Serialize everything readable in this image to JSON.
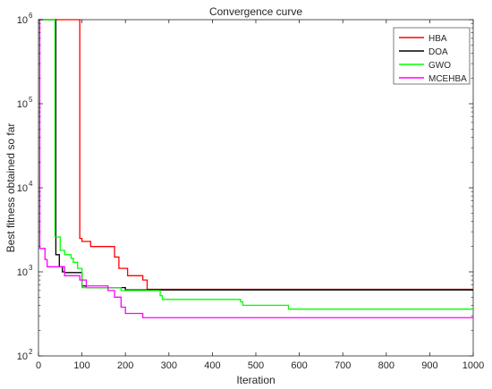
{
  "chart_data": {
    "type": "line",
    "title": "Convergence curve",
    "xlabel": "Iteration",
    "ylabel": "Best fitness obtained so far",
    "xlim": [
      0,
      1000
    ],
    "ylim": [
      100,
      1000000
    ],
    "yscale": "log",
    "xticks": [
      "0",
      "100",
      "200",
      "300",
      "400",
      "500",
      "600",
      "700",
      "800",
      "900",
      "1000"
    ],
    "yticks": [
      {
        "value": 100,
        "mantissa": "10",
        "exp": "2"
      },
      {
        "value": 1000,
        "mantissa": "10",
        "exp": "3"
      },
      {
        "value": 10000,
        "mantissa": "10",
        "exp": "4"
      },
      {
        "value": 100000,
        "mantissa": "10",
        "exp": "5"
      },
      {
        "value": 1000000,
        "mantissa": "10",
        "exp": "6"
      }
    ],
    "grid": false,
    "legend_position": "top-right",
    "series": [
      {
        "name": "HBA",
        "color": "#ff0000",
        "step": true,
        "points": [
          [
            0,
            1000000
          ],
          [
            95,
            1000000
          ],
          [
            95,
            2500
          ],
          [
            100,
            2300
          ],
          [
            120,
            2000
          ],
          [
            175,
            2000
          ],
          [
            175,
            1500
          ],
          [
            185,
            1100
          ],
          [
            205,
            900
          ],
          [
            240,
            800
          ],
          [
            250,
            800
          ],
          [
            250,
            620
          ],
          [
            1000,
            620
          ]
        ]
      },
      {
        "name": "DOA",
        "color": "#000000",
        "step": true,
        "points": [
          [
            0,
            1000000
          ],
          [
            40,
            1000000
          ],
          [
            40,
            1600
          ],
          [
            48,
            1150
          ],
          [
            55,
            1000
          ],
          [
            60,
            980
          ],
          [
            100,
            980
          ],
          [
            100,
            680
          ],
          [
            110,
            650
          ],
          [
            200,
            650
          ],
          [
            200,
            610
          ],
          [
            1000,
            610
          ]
        ]
      },
      {
        "name": "GWO",
        "color": "#00ff00",
        "step": true,
        "points": [
          [
            0,
            1000000
          ],
          [
            38,
            1000000
          ],
          [
            38,
            2600
          ],
          [
            50,
            1800
          ],
          [
            60,
            1600
          ],
          [
            75,
            1450
          ],
          [
            80,
            1300
          ],
          [
            90,
            1100
          ],
          [
            100,
            650
          ],
          [
            190,
            600
          ],
          [
            280,
            520
          ],
          [
            285,
            470
          ],
          [
            465,
            440
          ],
          [
            470,
            400
          ],
          [
            570,
            400
          ],
          [
            575,
            360
          ],
          [
            1000,
            360
          ]
        ]
      },
      {
        "name": "MCEHBA",
        "color": "#ff00ff",
        "step": true,
        "points": [
          [
            0,
            1000000
          ],
          [
            3,
            1000000
          ],
          [
            3,
            1900
          ],
          [
            15,
            1400
          ],
          [
            20,
            1150
          ],
          [
            55,
            1150
          ],
          [
            60,
            900
          ],
          [
            95,
            800
          ],
          [
            110,
            680
          ],
          [
            155,
            680
          ],
          [
            160,
            600
          ],
          [
            175,
            500
          ],
          [
            190,
            380
          ],
          [
            200,
            320
          ],
          [
            240,
            320
          ],
          [
            240,
            285
          ],
          [
            1000,
            285
          ]
        ]
      }
    ]
  }
}
